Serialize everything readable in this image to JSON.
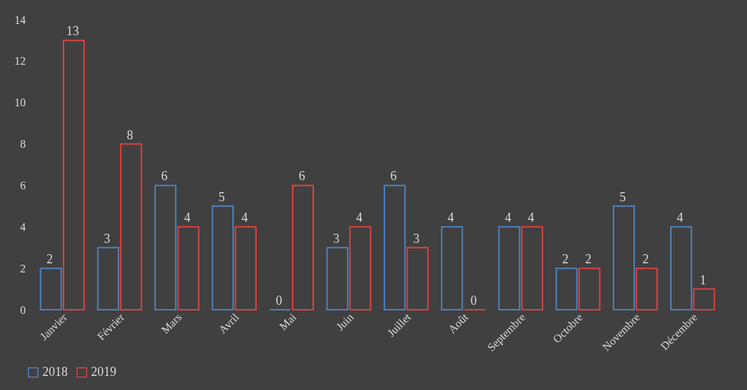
{
  "chart_data": {
    "type": "bar",
    "categories": [
      "Janvier",
      "Février",
      "Mars",
      "Avril",
      "Mai",
      "Juin",
      "Juillet",
      "Août",
      "Septembre",
      "Octobre",
      "Novembre",
      "Décembre"
    ],
    "series": [
      {
        "name": "2018",
        "color": "#4f81bd",
        "values": [
          2,
          3,
          6,
          5,
          0,
          3,
          6,
          4,
          4,
          2,
          5,
          4
        ]
      },
      {
        "name": "2019",
        "color": "#e0403f",
        "values": [
          13,
          8,
          4,
          4,
          6,
          4,
          3,
          0,
          4,
          2,
          2,
          1
        ]
      }
    ],
    "ylim": [
      0,
      14
    ],
    "yticks": [
      0,
      2,
      4,
      6,
      8,
      10,
      12,
      14
    ],
    "grid": false,
    "legend": "bottom",
    "data_labels": true
  }
}
